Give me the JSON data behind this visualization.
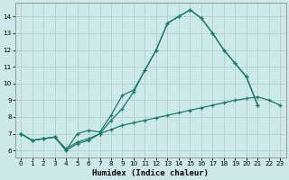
{
  "xlabel": "Humidex (Indice chaleur)",
  "bg_color": "#cce8e8",
  "grid_color": "#aacccc",
  "line_color": "#1a7a6a",
  "xlim": [
    -0.5,
    23.5
  ],
  "ylim": [
    5.6,
    14.8
  ],
  "x_ticks": [
    0,
    1,
    2,
    3,
    4,
    5,
    6,
    7,
    8,
    9,
    10,
    11,
    12,
    13,
    14,
    15,
    16,
    17,
    18,
    19,
    20,
    21,
    22,
    23
  ],
  "y_ticks": [
    6,
    7,
    8,
    9,
    10,
    11,
    12,
    13,
    14
  ],
  "curve1_x": [
    0,
    1,
    2,
    3,
    4,
    5,
    6,
    7,
    8,
    9,
    10,
    11,
    12,
    13,
    14,
    15,
    16,
    17,
    18,
    19,
    20,
    21
  ],
  "curve1_y": [
    7.0,
    6.6,
    6.7,
    6.8,
    6.0,
    6.4,
    6.6,
    7.0,
    7.8,
    8.5,
    9.5,
    10.8,
    12.0,
    13.6,
    14.0,
    14.4,
    13.9,
    13.0,
    12.0,
    11.2,
    10.4,
    8.7
  ],
  "curve2_x": [
    0,
    1,
    2,
    3,
    4,
    5,
    6,
    7,
    8,
    9,
    10,
    11,
    12,
    13,
    14,
    15,
    16,
    17,
    18,
    19,
    20,
    21
  ],
  "curve2_y": [
    7.0,
    6.6,
    6.7,
    6.8,
    6.0,
    7.0,
    7.2,
    7.1,
    8.1,
    9.3,
    9.6,
    10.8,
    12.0,
    13.6,
    14.0,
    14.4,
    13.9,
    13.0,
    12.0,
    11.2,
    10.4,
    8.7
  ],
  "curve3_x": [
    0,
    1,
    2,
    3,
    4,
    5,
    6,
    7,
    8,
    9,
    10,
    11,
    12,
    13,
    14,
    15,
    16,
    17,
    18,
    19,
    20,
    21,
    22,
    23
  ],
  "curve3_y": [
    7.0,
    6.6,
    6.7,
    6.8,
    6.1,
    6.5,
    6.7,
    7.0,
    7.25,
    7.5,
    7.65,
    7.8,
    7.95,
    8.1,
    8.25,
    8.4,
    8.55,
    8.7,
    8.85,
    9.0,
    9.1,
    9.2,
    9.0,
    8.7
  ],
  "xlabel_fontsize": 6.5,
  "tick_fontsize": 5.2
}
